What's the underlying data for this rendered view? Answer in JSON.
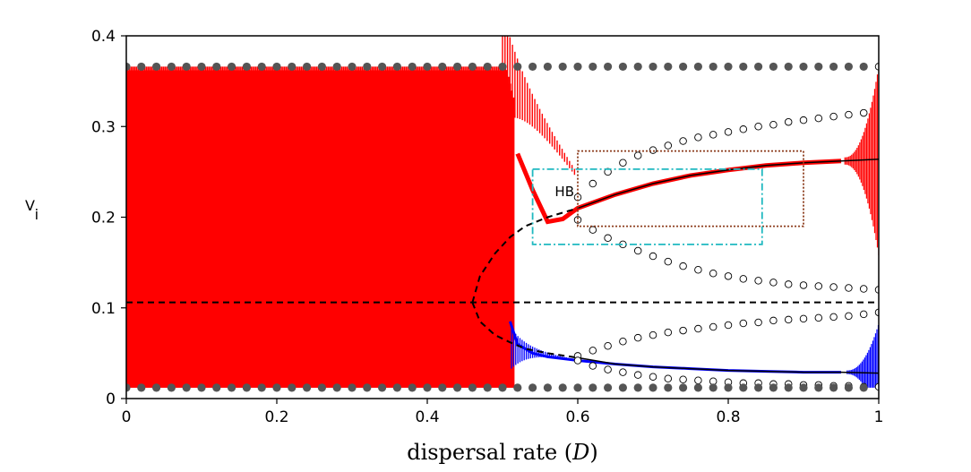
{
  "chart_data": {
    "type": "scatter",
    "xlabel_prefix": "dispersal rate (",
    "xlabel_var": "D",
    "xlabel_suffix": ")",
    "ylabel_main": "V",
    "ylabel_sub": "i",
    "xlim": [
      0,
      1
    ],
    "ylim": [
      0,
      0.4
    ],
    "x_ticks": [
      0,
      0.2,
      0.4,
      0.6,
      0.8,
      1
    ],
    "x_tick_labels": [
      "0",
      "0.2",
      "0.4",
      "0.6",
      "0.8",
      "1"
    ],
    "y_ticks": [
      0,
      0.1,
      0.2,
      0.3,
      0.4
    ],
    "y_tick_labels": [
      "0",
      "0.1",
      "0.2",
      "0.3",
      "0.4"
    ],
    "grid": false,
    "colors": {
      "patch1": "#ff0000",
      "patch2": "#0000ff",
      "limit_cycle_dots": "#555555",
      "homogeneous_branch": "#000000",
      "unstable_orbit": "#000000",
      "box_outer": "#8b3a1a",
      "box_inner": "#1fb8c0"
    },
    "annotations": [
      {
        "text": "HB",
        "x": 0.6,
        "y": 0.225
      }
    ],
    "homogeneous_steady_state": {
      "style": "dashed",
      "y": 0.106,
      "x_range": [
        0,
        1
      ]
    },
    "unstable_branch_upper": {
      "style": "dashed",
      "x": [
        0.46,
        0.47,
        0.49,
        0.51,
        0.53,
        0.56,
        0.6
      ],
      "y": [
        0.106,
        0.135,
        0.16,
        0.178,
        0.19,
        0.2,
        0.21
      ]
    },
    "unstable_branch_lower": {
      "style": "dashed",
      "x": [
        0.46,
        0.47,
        0.49,
        0.51,
        0.53,
        0.56,
        0.6
      ],
      "y": [
        0.106,
        0.085,
        0.07,
        0.062,
        0.055,
        0.05,
        0.045
      ]
    },
    "stable_branch_upper": {
      "style": "solid",
      "x": [
        0.6,
        0.65,
        0.7,
        0.75,
        0.8,
        0.85,
        0.9,
        0.95,
        1.0
      ],
      "y": [
        0.21,
        0.225,
        0.237,
        0.246,
        0.252,
        0.257,
        0.26,
        0.262,
        0.264
      ]
    },
    "stable_branch_lower": {
      "style": "solid",
      "x": [
        0.6,
        0.65,
        0.7,
        0.75,
        0.8,
        0.85,
        0.9,
        0.95,
        1.0
      ],
      "y": [
        0.045,
        0.038,
        0.035,
        0.033,
        0.031,
        0.03,
        0.029,
        0.029,
        0.028
      ]
    },
    "red_series": {
      "x": [
        0.52,
        0.54,
        0.56,
        0.58,
        0.6,
        0.65,
        0.7,
        0.75,
        0.8,
        0.85,
        0.9,
        0.95
      ],
      "y": [
        0.27,
        0.23,
        0.195,
        0.198,
        0.21,
        0.225,
        0.237,
        0.246,
        0.252,
        0.257,
        0.26,
        0.262
      ]
    },
    "blue_series": {
      "x": [
        0.51,
        0.52,
        0.54,
        0.56,
        0.6,
        0.65,
        0.7,
        0.75,
        0.8,
        0.85,
        0.9,
        0.95
      ],
      "y": [
        0.085,
        0.06,
        0.05,
        0.046,
        0.042,
        0.038,
        0.035,
        0.033,
        0.031,
        0.03,
        0.029,
        0.029
      ]
    },
    "periodic_orbit_max": {
      "y": 0.366,
      "x_range": [
        0,
        1
      ],
      "step": 0.02
    },
    "periodic_orbit_min": {
      "y": 0.012,
      "x_range": [
        0,
        1
      ],
      "step": 0.02
    },
    "unstable_orbit_circles": [
      {
        "name": "upper-outer",
        "x": [
          0.6,
          0.62,
          0.64,
          0.66,
          0.68,
          0.7,
          0.72,
          0.74,
          0.76,
          0.78,
          0.8,
          0.82,
          0.84,
          0.86,
          0.88,
          0.9,
          0.92,
          0.94,
          0.96,
          0.98,
          1.0
        ],
        "y": [
          0.222,
          0.237,
          0.25,
          0.26,
          0.268,
          0.274,
          0.279,
          0.284,
          0.288,
          0.291,
          0.294,
          0.297,
          0.3,
          0.302,
          0.305,
          0.307,
          0.309,
          0.311,
          0.313,
          0.315,
          0.366
        ]
      },
      {
        "name": "upper-inner",
        "x": [
          0.6,
          0.62,
          0.64,
          0.66,
          0.68,
          0.7,
          0.72,
          0.74,
          0.76,
          0.78,
          0.8,
          0.82,
          0.84,
          0.86,
          0.88,
          0.9,
          0.92,
          0.94,
          0.96,
          0.98,
          1.0
        ],
        "y": [
          0.197,
          0.186,
          0.177,
          0.17,
          0.163,
          0.157,
          0.151,
          0.146,
          0.142,
          0.138,
          0.135,
          0.132,
          0.13,
          0.128,
          0.126,
          0.125,
          0.124,
          0.123,
          0.122,
          0.121,
          0.12
        ]
      },
      {
        "name": "lower-outer",
        "x": [
          0.6,
          0.62,
          0.64,
          0.66,
          0.68,
          0.7,
          0.72,
          0.74,
          0.76,
          0.78,
          0.8,
          0.82,
          0.84,
          0.86,
          0.88,
          0.9,
          0.92,
          0.94,
          0.96,
          0.98,
          1.0
        ],
        "y": [
          0.047,
          0.053,
          0.058,
          0.063,
          0.067,
          0.07,
          0.073,
          0.075,
          0.077,
          0.079,
          0.081,
          0.083,
          0.084,
          0.086,
          0.087,
          0.088,
          0.089,
          0.09,
          0.091,
          0.093,
          0.095
        ]
      },
      {
        "name": "lower-inner",
        "x": [
          0.6,
          0.62,
          0.64,
          0.66,
          0.68,
          0.7,
          0.72,
          0.74,
          0.76,
          0.78,
          0.8,
          0.82,
          0.84,
          0.86,
          0.88,
          0.9,
          0.92,
          0.94,
          0.96,
          0.98,
          1.0
        ],
        "y": [
          0.042,
          0.036,
          0.032,
          0.029,
          0.026,
          0.024,
          0.022,
          0.021,
          0.02,
          0.019,
          0.018,
          0.017,
          0.017,
          0.016,
          0.016,
          0.015,
          0.015,
          0.014,
          0.014,
          0.013,
          0.013
        ]
      }
    ],
    "rectangles": [
      {
        "name": "outer-box",
        "x0": 0.6,
        "x1": 0.9,
        "y0": 0.19,
        "y1": 0.273,
        "style": "dotted"
      },
      {
        "name": "inner-box",
        "x0": 0.54,
        "x1": 0.845,
        "y0": 0.17,
        "y1": 0.253,
        "style": "dashdot"
      }
    ]
  }
}
